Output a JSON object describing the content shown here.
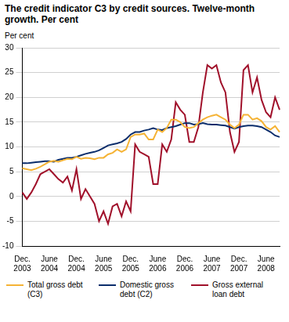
{
  "chart_data": {
    "type": "line",
    "title": "The credit indicator C3 by credit sources. Twelve-month growth.  Per cent",
    "ylabel": "Per cent",
    "categories": [
      "Dec. 2003",
      null,
      null,
      null,
      null,
      null,
      "June 2004",
      null,
      null,
      null,
      null,
      null,
      "Dec. 2004",
      null,
      null,
      null,
      null,
      null,
      "June 2005",
      null,
      null,
      null,
      null,
      null,
      "Dec. 2005",
      null,
      null,
      null,
      null,
      null,
      "June 2006",
      null,
      null,
      null,
      null,
      null,
      "Dec. 2006",
      null,
      null,
      null,
      null,
      null,
      "June 2007",
      null,
      null,
      null,
      null,
      null,
      "Dec. 2007",
      null,
      null,
      null,
      null,
      null,
      "June 2008",
      null,
      null,
      null
    ],
    "series": [
      {
        "name": "Total gross debt (C3)",
        "color": "#f5b335",
        "values": [
          5.7,
          5.5,
          5.3,
          5.6,
          6.0,
          6.5,
          7.0,
          7.2,
          7.0,
          7.3,
          7.6,
          7.5,
          8.0,
          7.6,
          7.8,
          7.7,
          7.5,
          7.8,
          7.8,
          8.5,
          8.8,
          9.5,
          9.0,
          9.5,
          12.0,
          12.5,
          12.5,
          12.7,
          11.5,
          11.5,
          13.5,
          13.0,
          13.8,
          15.5,
          15.5,
          15.0,
          14.0,
          13.8,
          14.0,
          14.8,
          15.5,
          16.0,
          16.3,
          16.5,
          16.0,
          15.5,
          14.5,
          13.8,
          14.5,
          16.5,
          16.5,
          15.5,
          15.8,
          15.2,
          14.0,
          13.5,
          14.2,
          13.0
        ]
      },
      {
        "name": "Domestic gross debt (C2)",
        "color": "#0b2d6b",
        "values": [
          6.7,
          6.7,
          6.8,
          6.9,
          7.0,
          7.1,
          7.1,
          7.0,
          7.4,
          7.6,
          7.8,
          7.8,
          8.0,
          8.3,
          8.6,
          8.8,
          9.0,
          9.3,
          9.8,
          10.3,
          10.5,
          10.7,
          11.0,
          11.6,
          12.5,
          13.0,
          13.0,
          13.3,
          13.5,
          13.8,
          13.5,
          13.4,
          13.8,
          14.0,
          14.2,
          14.5,
          14.8,
          14.8,
          14.5,
          14.6,
          14.8,
          14.6,
          14.5,
          14.5,
          14.4,
          14.3,
          14.0,
          13.7,
          14.0,
          14.2,
          14.3,
          14.3,
          14.2,
          14.0,
          13.5,
          13.0,
          12.3,
          12.0
        ]
      },
      {
        "name": "Gross external loan debt",
        "color": "#a0102a",
        "values": [
          0.8,
          -0.5,
          0.8,
          2.5,
          4.5,
          5.0,
          5.5,
          4.5,
          3.5,
          2.8,
          4.0,
          1.2,
          5.5,
          -0.5,
          1.5,
          0.0,
          -1.5,
          -5.0,
          -3.0,
          -5.5,
          -2.0,
          -1.5,
          -4.0,
          -1.0,
          -3.0,
          10.5,
          9.0,
          8.5,
          8.0,
          2.5,
          2.5,
          10.5,
          9.0,
          11.5,
          19.0,
          17.5,
          16.5,
          11.0,
          11.0,
          14.0,
          21.0,
          26.5,
          25.8,
          26.5,
          23.0,
          21.0,
          13.0,
          9.0,
          11.0,
          25.5,
          26.5,
          21.0,
          24.0,
          19.5,
          17.0,
          16.0,
          20.0,
          17.5
        ]
      }
    ],
    "ylim": [
      -10,
      30
    ],
    "yticks": [
      -10,
      -5,
      0,
      5,
      10,
      15,
      20,
      25,
      30
    ],
    "grid": true,
    "legend": "bottom"
  }
}
